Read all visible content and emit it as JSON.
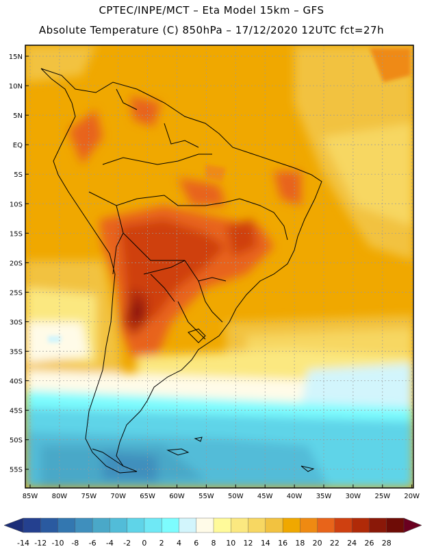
{
  "header": {
    "line1": "CPTEC/INPE/MCT –  Eta Model 15km – GFS",
    "line2": "Absolute Temperature (C) 850hPa – 17/12/2020 12UTC fct=27h"
  },
  "map": {
    "lat_labels": [
      "15N",
      "10N",
      "5N",
      "EQ",
      "5S",
      "10S",
      "15S",
      "20S",
      "25S",
      "30S",
      "35S",
      "40S",
      "45S",
      "50S",
      "55S"
    ],
    "lon_labels": [
      "85W",
      "80W",
      "75W",
      "70W",
      "65W",
      "60W",
      "55W",
      "50W",
      "45W",
      "40W",
      "35W",
      "30W",
      "25W",
      "20W"
    ]
  },
  "colorbar": {
    "tick_labels": [
      "-14",
      "-12",
      "-10",
      "-8",
      "-6",
      "-4",
      "-2",
      "0",
      "2",
      "4",
      "6",
      "8",
      "10",
      "12",
      "14",
      "16",
      "18",
      "20",
      "22",
      "24",
      "26",
      "28"
    ],
    "colors": [
      "#24408f",
      "#2a5aa0",
      "#3377b0",
      "#3f8fbd",
      "#4aa8c8",
      "#52bcd8",
      "#5fd4e8",
      "#6fe8f5",
      "#7dfcfe",
      "#d2f5fc",
      "#fffbe8",
      "#fffa9a",
      "#fbe880",
      "#f7d762",
      "#f2c240",
      "#f0a800",
      "#ef8a12",
      "#e8641a",
      "#cf4010",
      "#b02a08",
      "#8a1808",
      "#6e0c06"
    ],
    "low_arrow_color": "#1c2e78",
    "high_arrow_color": "#6a0020"
  }
}
